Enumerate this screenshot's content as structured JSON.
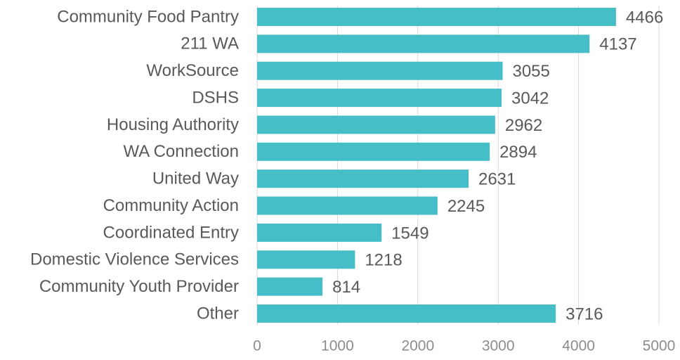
{
  "chart_data": {
    "type": "bar",
    "orientation": "horizontal",
    "categories": [
      "Community Food Pantry",
      "211 WA",
      "WorkSource",
      "DSHS",
      "Housing Authority",
      "WA Connection",
      "United Way",
      "Community Action",
      "Coordinated Entry",
      "Domestic Violence Services",
      "Community Youth Provider",
      "Other"
    ],
    "values": [
      4466,
      4137,
      3055,
      3042,
      2962,
      2894,
      2631,
      2245,
      1549,
      1218,
      814,
      3716
    ],
    "color": "#45bec8",
    "xlim": [
      0,
      5000
    ],
    "xticks": [
      0,
      1000,
      2000,
      3000,
      4000,
      5000
    ],
    "grid": true
  }
}
